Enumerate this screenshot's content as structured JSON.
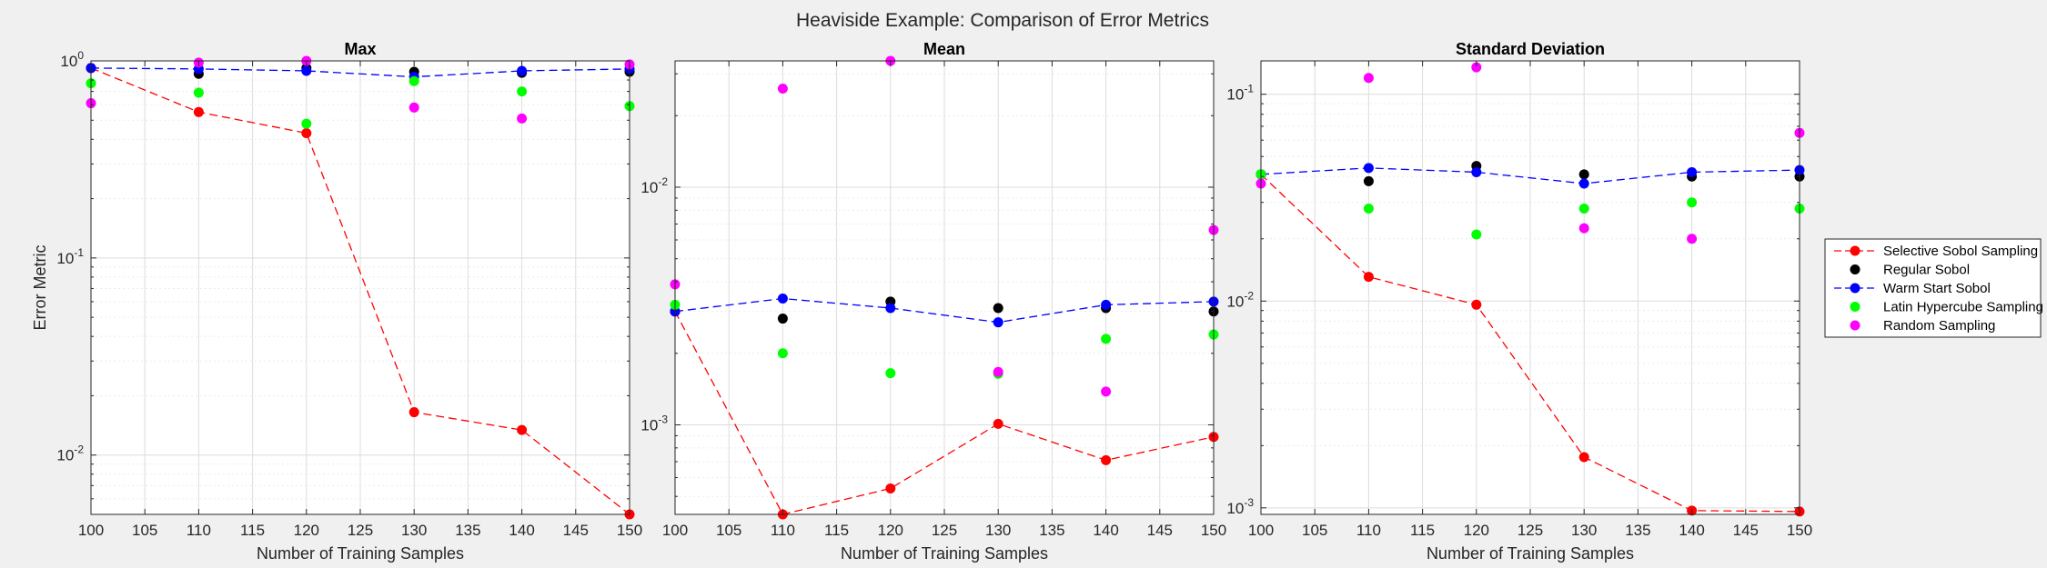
{
  "figure": {
    "title": "Heaviside Example: Comparison of Error Metrics"
  },
  "legend": {
    "placement": "right",
    "entries": [
      {
        "label": "Selective Sobol Sampling",
        "color": "#ff0000",
        "line": "dashed"
      },
      {
        "label": "Regular Sobol",
        "color": "#000000",
        "line": "none"
      },
      {
        "label": "Warm Start Sobol",
        "color": "#0000ff",
        "line": "dashed"
      },
      {
        "label": "Latin Hypercube Sampling",
        "color": "#00ff00",
        "line": "none"
      },
      {
        "label": "Random Sampling",
        "color": "#ff00ff",
        "line": "none"
      }
    ]
  },
  "chart_data": [
    {
      "type": "scatter",
      "title": "Max",
      "xlabel": "Number of Training Samples",
      "ylabel": "Error Metric",
      "yscale": "log",
      "grid": true,
      "xlim": [
        100,
        150
      ],
      "ylim": [
        0.005,
        1.0
      ],
      "xticks": [
        100,
        105,
        110,
        115,
        120,
        125,
        130,
        135,
        140,
        145,
        150
      ],
      "yticks": [
        {
          "value": 0.01,
          "base": "10",
          "exp": "-2"
        },
        {
          "value": 0.1,
          "base": "10",
          "exp": "-1"
        },
        {
          "value": 1,
          "base": "10",
          "exp": "0"
        }
      ],
      "x": [
        100,
        110,
        120,
        130,
        140,
        150
      ],
      "series": [
        {
          "name": "Selective Sobol Sampling",
          "color": "#ff0000",
          "line": "dashed",
          "values": [
            0.92,
            0.55,
            0.43,
            0.0165,
            0.0134,
            0.005
          ]
        },
        {
          "name": "Regular Sobol",
          "color": "#000000",
          "line": "none",
          "values": [
            0.92,
            0.86,
            0.92,
            0.88,
            0.87,
            0.88
          ]
        },
        {
          "name": "Warm Start Sobol",
          "color": "#0000ff",
          "line": "dashed",
          "values": [
            0.92,
            0.91,
            0.89,
            0.83,
            0.89,
            0.91
          ]
        },
        {
          "name": "Latin Hypercube Sampling",
          "color": "#00ff00",
          "line": "none",
          "values": [
            0.77,
            0.69,
            0.48,
            0.79,
            0.7,
            0.59
          ]
        },
        {
          "name": "Random Sampling",
          "color": "#ff00ff",
          "line": "none",
          "values": [
            0.61,
            0.98,
            1.0,
            0.58,
            0.51,
            0.96
          ]
        }
      ]
    },
    {
      "type": "scatter",
      "title": "Mean",
      "xlabel": "Number of Training Samples",
      "ylabel": "",
      "yscale": "log",
      "grid": true,
      "xlim": [
        100,
        150
      ],
      "ylim": [
        0.00042,
        0.034
      ],
      "xticks": [
        100,
        105,
        110,
        115,
        120,
        125,
        130,
        135,
        140,
        145,
        150
      ],
      "yticks": [
        {
          "value": 0.001,
          "base": "10",
          "exp": "-3"
        },
        {
          "value": 0.01,
          "base": "10",
          "exp": "-2"
        }
      ],
      "x": [
        100,
        110,
        120,
        130,
        140,
        150
      ],
      "series": [
        {
          "name": "Selective Sobol Sampling",
          "color": "#ff0000",
          "line": "dashed",
          "values": [
            0.003,
            0.00042,
            0.00054,
            0.00101,
            0.00071,
            0.00089
          ]
        },
        {
          "name": "Regular Sobol",
          "color": "#000000",
          "line": "none",
          "values": [
            0.003,
            0.0028,
            0.0033,
            0.0031,
            0.0031,
            0.003
          ]
        },
        {
          "name": "Warm Start Sobol",
          "color": "#0000ff",
          "line": "dashed",
          "values": [
            0.003,
            0.0034,
            0.0031,
            0.0027,
            0.0032,
            0.0033
          ]
        },
        {
          "name": "Latin Hypercube Sampling",
          "color": "#00ff00",
          "line": "none",
          "values": [
            0.0032,
            0.002,
            0.00165,
            0.00164,
            0.0023,
            0.0024
          ]
        },
        {
          "name": "Random Sampling",
          "color": "#ff00ff",
          "line": "none",
          "values": [
            0.0039,
            0.026,
            0.034,
            0.00167,
            0.00138,
            0.0066
          ]
        }
      ]
    },
    {
      "type": "scatter",
      "title": "Standard Deviation",
      "xlabel": "Number of Training Samples",
      "ylabel": "",
      "yscale": "log",
      "grid": true,
      "xlim": [
        100,
        150
      ],
      "ylim": [
        0.00093,
        0.145
      ],
      "xticks": [
        100,
        105,
        110,
        115,
        120,
        125,
        130,
        135,
        140,
        145,
        150
      ],
      "yticks": [
        {
          "value": 0.001,
          "base": "10",
          "exp": "-3"
        },
        {
          "value": 0.01,
          "base": "10",
          "exp": "-2"
        },
        {
          "value": 0.1,
          "base": "10",
          "exp": "-1"
        }
      ],
      "x": [
        100,
        110,
        120,
        130,
        140,
        150
      ],
      "series": [
        {
          "name": "Selective Sobol Sampling",
          "color": "#ff0000",
          "line": "dashed",
          "values": [
            0.041,
            0.0131,
            0.0096,
            0.00176,
            0.00097,
            0.00096
          ]
        },
        {
          "name": "Regular Sobol",
          "color": "#000000",
          "line": "none",
          "values": [
            0.041,
            0.038,
            0.045,
            0.041,
            0.04,
            0.04
          ]
        },
        {
          "name": "Warm Start Sobol",
          "color": "#0000ff",
          "line": "dashed",
          "values": [
            0.041,
            0.044,
            0.042,
            0.037,
            0.042,
            0.043
          ]
        },
        {
          "name": "Latin Hypercube Sampling",
          "color": "#00ff00",
          "line": "none",
          "values": [
            0.041,
            0.028,
            0.021,
            0.028,
            0.03,
            0.028
          ]
        },
        {
          "name": "Random Sampling",
          "color": "#ff00ff",
          "line": "none",
          "values": [
            0.037,
            0.12,
            0.135,
            0.0225,
            0.02,
            0.065
          ]
        }
      ]
    }
  ]
}
